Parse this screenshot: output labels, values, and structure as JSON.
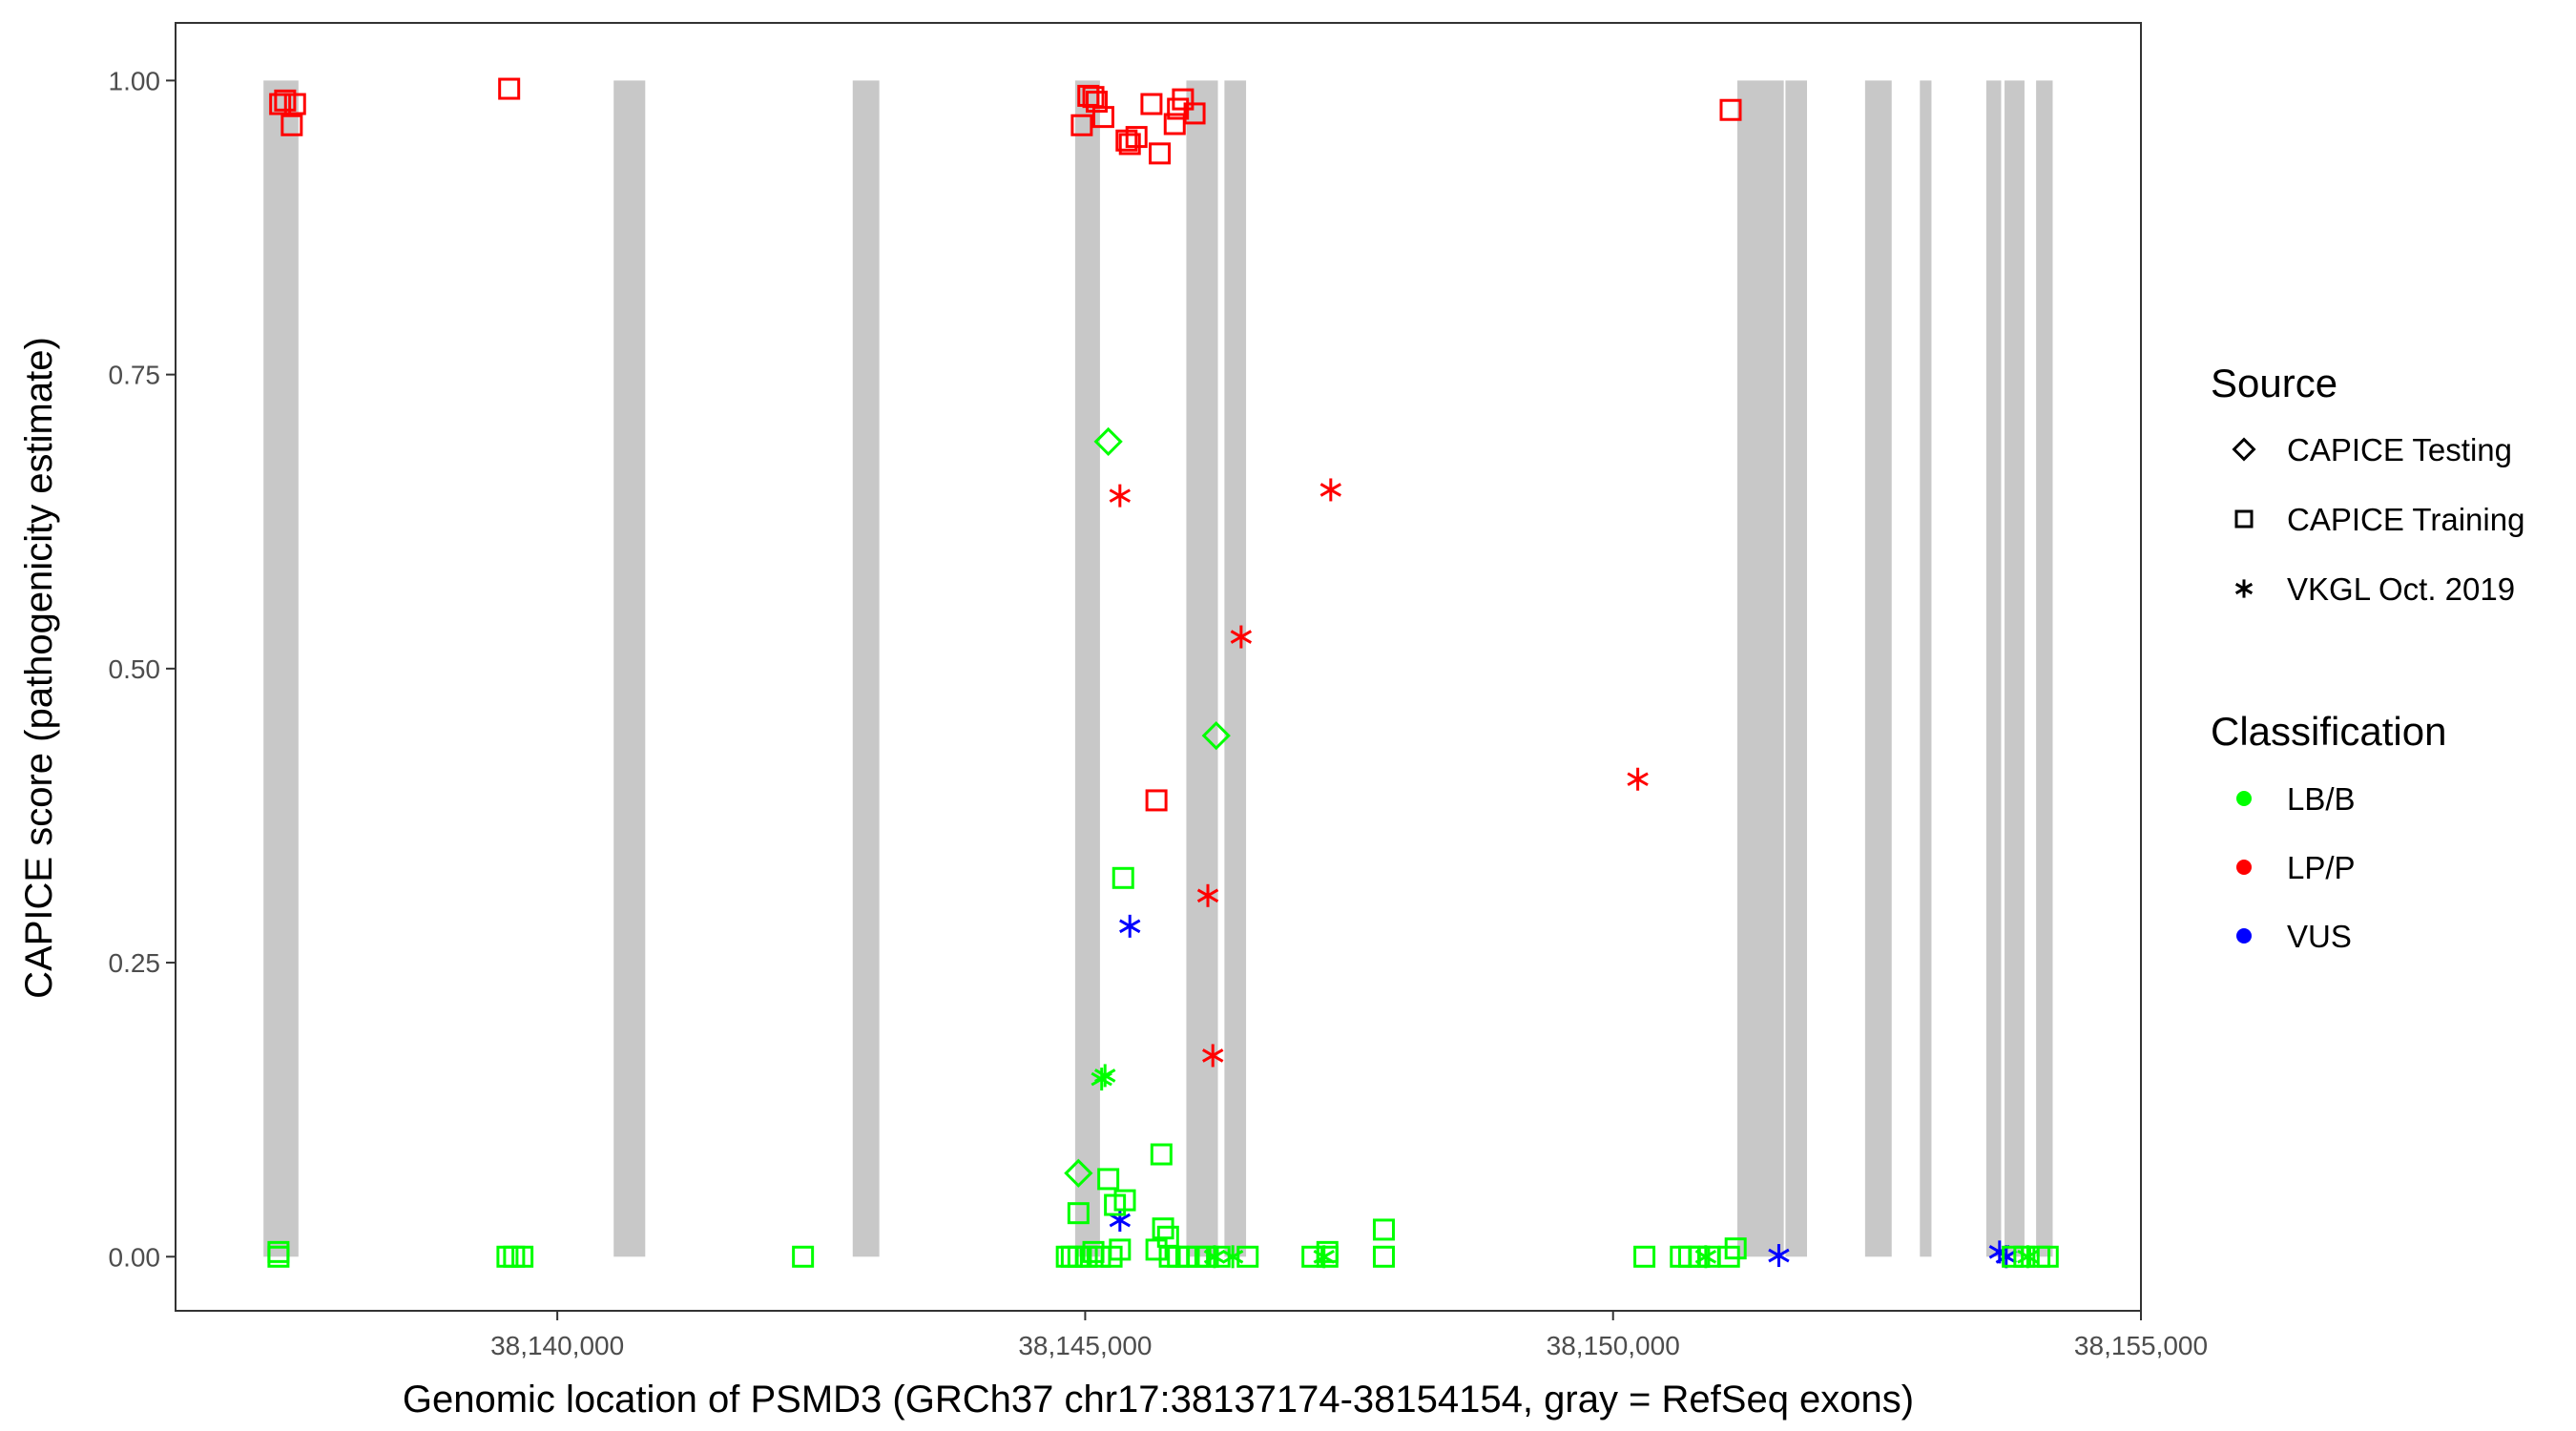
{
  "chart_data": {
    "type": "scatter",
    "xlabel": "Genomic location of PSMD3 (GRCh37 chr17:38137174-38154154, gray = RefSeq exons)",
    "ylabel": "CAPICE score (pathogenicity estimate)",
    "xlim": [
      38136384,
      38155000
    ],
    "ylim": [
      -0.046,
      1.049
    ],
    "xticks": [
      38140000,
      38145000,
      38150000,
      38155000
    ],
    "xtick_labels": [
      "38,140,000",
      "38,145,000",
      "38,150,000",
      "38,155,000"
    ],
    "yticks": [
      0,
      0.25,
      0.5,
      0.75,
      1.0
    ],
    "ytick_labels": [
      "0.00",
      "0.25",
      "0.50",
      "0.75",
      "1.00"
    ],
    "grid": false,
    "exons": [
      [
        38137217,
        38137548
      ],
      [
        38140534,
        38140833
      ],
      [
        38142798,
        38143050
      ],
      [
        38144905,
        38145140
      ],
      [
        38145958,
        38146257
      ],
      [
        38146319,
        38146524
      ],
      [
        38151177,
        38151617
      ],
      [
        38151633,
        38151837
      ],
      [
        38152387,
        38152639
      ],
      [
        38152906,
        38153016
      ],
      [
        38153535,
        38153676
      ],
      [
        38153708,
        38153897
      ],
      [
        38154007,
        38154164
      ]
    ],
    "legend": {
      "placement": "right",
      "source_title": "Source",
      "source_items": [
        {
          "label": "CAPICE Testing",
          "shape": "diamond"
        },
        {
          "label": "CAPICE Training",
          "shape": "square"
        },
        {
          "label": "VKGL Oct. 2019",
          "shape": "asterisk"
        }
      ],
      "class_title": "Classification",
      "class_items": [
        {
          "label": "LB/B",
          "color": "#00ff00"
        },
        {
          "label": "LP/P",
          "color": "#ff0000"
        },
        {
          "label": "VUS",
          "color": "#0000ff"
        }
      ]
    },
    "series": [
      {
        "source": "CAPICE Training",
        "class": "LP/P",
        "points": [
          [
            38137375,
            0.98
          ],
          [
            38137422,
            0.983
          ],
          [
            38137516,
            0.98
          ],
          [
            38137485,
            0.962
          ],
          [
            38139544,
            0.993
          ],
          [
            38144968,
            0.962
          ],
          [
            38145030,
            0.987
          ],
          [
            38145078,
            0.986
          ],
          [
            38145109,
            0.982
          ],
          [
            38145172,
            0.969
          ],
          [
            38145392,
            0.949
          ],
          [
            38145423,
            0.946
          ],
          [
            38145486,
            0.952
          ],
          [
            38145628,
            0.98
          ],
          [
            38145706,
            0.938
          ],
          [
            38145848,
            0.963
          ],
          [
            38145879,
            0.976
          ],
          [
            38145926,
            0.984
          ],
          [
            38146036,
            0.972
          ],
          [
            38145675,
            0.388
          ],
          [
            38151114,
            0.975
          ]
        ]
      },
      {
        "source": "VKGL Oct. 2019",
        "class": "LP/P",
        "points": [
          [
            38145329,
            0.647
          ],
          [
            38147326,
            0.652
          ],
          [
            38146477,
            0.527
          ],
          [
            38150234,
            0.406
          ],
          [
            38146162,
            0.307
          ],
          [
            38146209,
            0.171
          ]
        ]
      },
      {
        "source": "CAPICE Testing",
        "class": "LB/B",
        "points": [
          [
            38145219,
            0.693
          ],
          [
            38146241,
            0.443
          ],
          [
            38144936,
            0.071
          ]
        ]
      },
      {
        "source": "VKGL Oct. 2019",
        "class": "VUS",
        "points": [
          [
            38145423,
            0.281
          ],
          [
            38145329,
            0.031
          ],
          [
            38151570,
            0.001
          ],
          [
            38153661,
            0.004
          ],
          [
            38153724,
            0.0
          ]
        ]
      },
      {
        "source": "VKGL Oct. 2019",
        "class": "LB/B",
        "points": [
          [
            38145156,
            0.151
          ],
          [
            38145188,
            0.154
          ],
          [
            38146225,
            0.0
          ],
          [
            38146398,
            0.0
          ],
          [
            38147262,
            0.0
          ],
          [
            38150878,
            0.0
          ],
          [
            38153928,
            0.0
          ]
        ]
      },
      {
        "source": "CAPICE Training",
        "class": "LB/B",
        "points": [
          [
            38145360,
            0.322
          ],
          [
            38145722,
            0.087
          ],
          [
            38145219,
            0.066
          ],
          [
            38144936,
            0.037
          ],
          [
            38145282,
            0.044
          ],
          [
            38145376,
            0.048
          ],
          [
            38145738,
            0.024
          ],
          [
            38145785,
            0.017
          ],
          [
            38147829,
            0.023
          ],
          [
            38137359,
            0.004
          ],
          [
            38137359,
            0.0
          ],
          [
            38139528,
            0.0
          ],
          [
            38139591,
            0.0
          ],
          [
            38139670,
            0.0
          ],
          [
            38142327,
            0.0
          ],
          [
            38144826,
            0.0
          ],
          [
            38144873,
            0.0
          ],
          [
            38144936,
            0.0
          ],
          [
            38145015,
            0.0
          ],
          [
            38145078,
            0.004
          ],
          [
            38145140,
            0.0
          ],
          [
            38145250,
            0.0
          ],
          [
            38145329,
            0.006
          ],
          [
            38145675,
            0.006
          ],
          [
            38145801,
            0.0
          ],
          [
            38145879,
            0.0
          ],
          [
            38145958,
            0.0
          ],
          [
            38146068,
            0.0
          ],
          [
            38146162,
            0.0
          ],
          [
            38146272,
            0.0
          ],
          [
            38146539,
            0.0
          ],
          [
            38147153,
            0.0
          ],
          [
            38147294,
            0.004
          ],
          [
            38147294,
            0.0
          ],
          [
            38147829,
            0.0
          ],
          [
            38150297,
            0.0
          ],
          [
            38150642,
            0.0
          ],
          [
            38150721,
            0.0
          ],
          [
            38150815,
            0.0
          ],
          [
            38150909,
            0.0
          ],
          [
            38151098,
            0.0
          ],
          [
            38151161,
            0.007
          ],
          [
            38153786,
            0.0
          ],
          [
            38153896,
            0.0
          ],
          [
            38154038,
            0.0
          ],
          [
            38154117,
            0.0
          ]
        ]
      }
    ]
  }
}
